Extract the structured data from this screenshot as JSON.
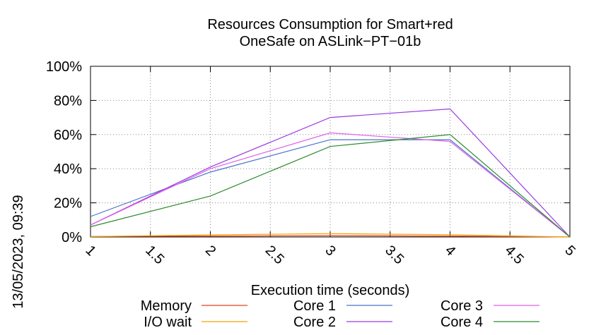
{
  "chart_data": {
    "type": "line",
    "title_line1": "Resources Consumption for Smart+red",
    "title_line2": "OneSafe on ASLink−PT−01b",
    "xlabel": "Execution time (seconds)",
    "ylabel": "",
    "timestamp": "13/05/2023, 09:39",
    "xlim": [
      1,
      5
    ],
    "ylim": [
      0,
      100
    ],
    "x_ticks": [
      "1",
      "1.5",
      "2",
      "2.5",
      "3",
      "3.5",
      "4",
      "4.5",
      "5"
    ],
    "y_ticks": [
      "0%",
      "20%",
      "40%",
      "60%",
      "80%",
      "100%"
    ],
    "grid": true,
    "legend_position": "bottom",
    "x": [
      1,
      2,
      3,
      4,
      5
    ],
    "series": [
      {
        "name": "Memory",
        "color": "#e8401c",
        "values": [
          0.3,
          0.5,
          0.8,
          0.5,
          0
        ]
      },
      {
        "name": "I/O wait",
        "color": "#f0a000",
        "values": [
          0.2,
          1.2,
          2.0,
          1.3,
          0
        ]
      },
      {
        "name": "Core 1",
        "color": "#4a74c8",
        "values": [
          12,
          38,
          57,
          57,
          0
        ]
      },
      {
        "name": "Core 2",
        "color": "#9a3be0",
        "values": [
          7,
          41,
          70,
          75,
          0
        ]
      },
      {
        "name": "Core 3",
        "color": "#e060e8",
        "values": [
          7,
          40,
          61,
          56,
          0
        ]
      },
      {
        "name": "Core 4",
        "color": "#2e8b2e",
        "values": [
          6,
          24,
          53,
          60,
          0
        ]
      }
    ]
  }
}
